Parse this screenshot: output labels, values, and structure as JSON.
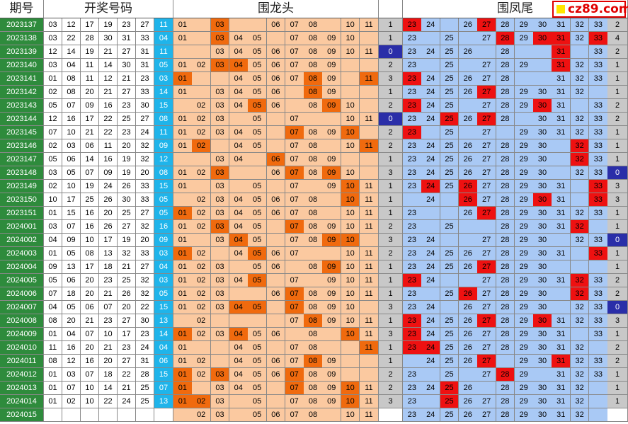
{
  "chart_data": {
    "type": "table",
    "headers": {
      "period": "期号",
      "draw": "开奖号码",
      "dragon_head": "围龙头",
      "phoenix_tail": "围凤尾"
    },
    "rows": [
      {
        "period": "2023137",
        "nums": [
          "03",
          "12",
          "17",
          "19",
          "23",
          "27"
        ],
        "special": "11",
        "head_count": "1",
        "tail_count": "2"
      },
      {
        "period": "2023138",
        "nums": [
          "03",
          "22",
          "28",
          "30",
          "31",
          "33"
        ],
        "special": "04",
        "head_count": "1",
        "tail_count": "4"
      },
      {
        "period": "2023139",
        "nums": [
          "12",
          "14",
          "19",
          "21",
          "27",
          "31"
        ],
        "special": "11",
        "head_count": "0",
        "tail_count": "2"
      },
      {
        "period": "2023140",
        "nums": [
          "03",
          "04",
          "11",
          "14",
          "30",
          "31"
        ],
        "special": "05",
        "head_count": "2",
        "tail_count": "1"
      },
      {
        "period": "2023141",
        "nums": [
          "01",
          "08",
          "11",
          "12",
          "21",
          "23"
        ],
        "special": "03",
        "head_count": "3",
        "tail_count": "1"
      },
      {
        "period": "2023142",
        "nums": [
          "02",
          "08",
          "20",
          "21",
          "27",
          "33"
        ],
        "special": "14",
        "head_count": "1",
        "tail_count": "1"
      },
      {
        "period": "2023143",
        "nums": [
          "05",
          "07",
          "09",
          "16",
          "23",
          "30"
        ],
        "special": "15",
        "head_count": "2",
        "tail_count": "2"
      },
      {
        "period": "2023144",
        "nums": [
          "12",
          "16",
          "17",
          "22",
          "25",
          "27"
        ],
        "special": "08",
        "head_count": "0",
        "tail_count": "2"
      },
      {
        "period": "2023145",
        "nums": [
          "07",
          "10",
          "21",
          "22",
          "23",
          "24"
        ],
        "special": "11",
        "head_count": "2",
        "tail_count": "1"
      },
      {
        "period": "2023146",
        "nums": [
          "02",
          "03",
          "06",
          "11",
          "20",
          "32"
        ],
        "special": "09",
        "head_count": "2",
        "tail_count": "1"
      },
      {
        "period": "2023147",
        "nums": [
          "05",
          "06",
          "14",
          "16",
          "19",
          "32"
        ],
        "special": "12",
        "head_count": "1",
        "tail_count": "1"
      },
      {
        "period": "2023148",
        "nums": [
          "03",
          "05",
          "07",
          "09",
          "19",
          "20"
        ],
        "special": "08",
        "head_count": "3",
        "tail_count": "0"
      },
      {
        "period": "2023149",
        "nums": [
          "02",
          "10",
          "19",
          "24",
          "26",
          "33"
        ],
        "special": "15",
        "head_count": "1",
        "tail_count": "3"
      },
      {
        "period": "2023150",
        "nums": [
          "10",
          "17",
          "25",
          "26",
          "30",
          "33"
        ],
        "special": "05",
        "head_count": "1",
        "tail_count": "3"
      },
      {
        "period": "2023151",
        "nums": [
          "01",
          "15",
          "16",
          "20",
          "25",
          "27"
        ],
        "special": "05",
        "head_count": "1",
        "tail_count": "1"
      },
      {
        "period": "2024001",
        "nums": [
          "03",
          "07",
          "16",
          "26",
          "27",
          "32"
        ],
        "special": "16",
        "head_count": "2",
        "tail_count": "1"
      },
      {
        "period": "2024002",
        "nums": [
          "04",
          "09",
          "10",
          "17",
          "19",
          "20"
        ],
        "special": "09",
        "head_count": "3",
        "tail_count": "0"
      },
      {
        "period": "2024003",
        "nums": [
          "01",
          "05",
          "08",
          "13",
          "32",
          "33"
        ],
        "special": "03",
        "head_count": "2",
        "tail_count": "1"
      },
      {
        "period": "2024004",
        "nums": [
          "09",
          "13",
          "17",
          "18",
          "21",
          "27"
        ],
        "special": "04",
        "head_count": "1",
        "tail_count": "1"
      },
      {
        "period": "2024005",
        "nums": [
          "05",
          "06",
          "20",
          "23",
          "25",
          "32"
        ],
        "special": "03",
        "head_count": "1",
        "tail_count": "2"
      },
      {
        "period": "2024006",
        "nums": [
          "07",
          "18",
          "20",
          "21",
          "26",
          "32"
        ],
        "special": "05",
        "head_count": "1",
        "tail_count": "2"
      },
      {
        "period": "2024007",
        "nums": [
          "04",
          "05",
          "06",
          "07",
          "20",
          "22"
        ],
        "special": "15",
        "head_count": "3",
        "tail_count": "0"
      },
      {
        "period": "2024008",
        "nums": [
          "08",
          "20",
          "21",
          "23",
          "27",
          "30"
        ],
        "special": "13",
        "head_count": "1",
        "tail_count": "3"
      },
      {
        "period": "2024009",
        "nums": [
          "01",
          "04",
          "07",
          "10",
          "17",
          "23"
        ],
        "special": "14",
        "head_count": "3",
        "tail_count": "1"
      },
      {
        "period": "2024010",
        "nums": [
          "11",
          "16",
          "20",
          "21",
          "23",
          "24"
        ],
        "special": "04",
        "head_count": "1",
        "tail_count": "2"
      },
      {
        "period": "2024011",
        "nums": [
          "08",
          "12",
          "16",
          "20",
          "27",
          "31"
        ],
        "special": "06",
        "head_count": "1",
        "tail_count": "2"
      },
      {
        "period": "2024012",
        "nums": [
          "01",
          "03",
          "07",
          "18",
          "22",
          "28"
        ],
        "special": "15",
        "head_count": "2",
        "tail_count": "1"
      },
      {
        "period": "2024013",
        "nums": [
          "01",
          "07",
          "10",
          "14",
          "21",
          "25"
        ],
        "special": "07",
        "head_count": "2",
        "tail_count": "1"
      },
      {
        "period": "2024014",
        "nums": [
          "01",
          "02",
          "10",
          "22",
          "24",
          "25"
        ],
        "special": "13",
        "head_count": "3",
        "tail_count": "1"
      },
      {
        "period": "2024015",
        "nums": [],
        "special": "",
        "head_count": "",
        "tail_count": ""
      }
    ],
    "head_numbers": [
      "01",
      "02",
      "03",
      "04",
      "05",
      "06",
      "07",
      "08",
      "09",
      "10",
      "11"
    ],
    "tail_numbers": [
      "23",
      "24",
      "25",
      "26",
      "27",
      "28",
      "29",
      "30",
      "31",
      "32",
      "33"
    ],
    "head_pred": [
      [
        "01",
        "03",
        "06",
        "07",
        "08",
        "10",
        "11"
      ],
      [
        "01",
        "03",
        "04",
        "05",
        "07",
        "08",
        "09",
        "10"
      ],
      [
        "03",
        "04",
        "05",
        "06",
        "07",
        "08",
        "09",
        "10",
        "11"
      ],
      [
        "01",
        "02",
        "03",
        "04",
        "05",
        "06",
        "07",
        "08",
        "09"
      ],
      [
        "01",
        "04",
        "05",
        "06",
        "07",
        "08",
        "09",
        "11"
      ],
      [
        "01",
        "03",
        "04",
        "05",
        "06",
        "08",
        "09"
      ],
      [
        "02",
        "03",
        "04",
        "05",
        "06",
        "08",
        "09",
        "10"
      ],
      [
        "01",
        "02",
        "03",
        "05",
        "07",
        "10",
        "11"
      ],
      [
        "01",
        "02",
        "03",
        "04",
        "05",
        "07",
        "08",
        "09",
        "10"
      ],
      [
        "01",
        "02",
        "04",
        "05",
        "07",
        "08",
        "10",
        "11"
      ],
      [
        "03",
        "04",
        "06",
        "07",
        "08",
        "09"
      ],
      [
        "01",
        "02",
        "03",
        "06",
        "07",
        "08",
        "09",
        "10"
      ],
      [
        "01",
        "03",
        "05",
        "07",
        "09",
        "10",
        "11"
      ],
      [
        "02",
        "03",
        "04",
        "05",
        "06",
        "07",
        "08",
        "10",
        "11"
      ],
      [
        "01",
        "02",
        "03",
        "04",
        "05",
        "06",
        "07",
        "08",
        "10",
        "11"
      ],
      [
        "01",
        "02",
        "03",
        "04",
        "05",
        "07",
        "08",
        "09",
        "10",
        "11"
      ],
      [
        "01",
        "03",
        "04",
        "05",
        "07",
        "08",
        "09",
        "10"
      ],
      [
        "01",
        "02",
        "04",
        "05",
        "06",
        "07",
        "10",
        "11"
      ],
      [
        "01",
        "02",
        "03",
        "05",
        "06",
        "08",
        "09",
        "10",
        "11"
      ],
      [
        "01",
        "02",
        "03",
        "04",
        "05",
        "07",
        "09",
        "10",
        "11"
      ],
      [
        "01",
        "02",
        "03",
        "06",
        "07",
        "08",
        "09",
        "10",
        "11"
      ],
      [
        "01",
        "02",
        "03",
        "04",
        "05",
        "07",
        "08",
        "09",
        "10"
      ],
      [
        "02",
        "07",
        "08",
        "09",
        "10",
        "11"
      ],
      [
        "01",
        "02",
        "03",
        "04",
        "05",
        "06",
        "08",
        "10",
        "11"
      ],
      [
        "01",
        "04",
        "05",
        "07",
        "08",
        "11"
      ],
      [
        "01",
        "02",
        "04",
        "05",
        "06",
        "07",
        "08",
        "09"
      ],
      [
        "01",
        "02",
        "03",
        "04",
        "05",
        "06",
        "07",
        "08",
        "09"
      ],
      [
        "01",
        "03",
        "04",
        "05",
        "07",
        "08",
        "09",
        "10",
        "11"
      ],
      [
        "01",
        "02",
        "03",
        "05",
        "07",
        "08",
        "09",
        "10",
        "11"
      ],
      [
        "02",
        "03",
        "05",
        "06",
        "07",
        "08",
        "10",
        "11"
      ]
    ],
    "tail_pred": [
      [
        "23",
        "24",
        "26",
        "27",
        "28",
        "29",
        "30",
        "31",
        "32",
        "33"
      ],
      [
        "23",
        "25",
        "27",
        "28",
        "29",
        "30",
        "31",
        "32",
        "33"
      ],
      [
        "23",
        "24",
        "25",
        "26",
        "28",
        "31",
        "33"
      ],
      [
        "23",
        "25",
        "27",
        "28",
        "29",
        "31",
        "32",
        "33"
      ],
      [
        "23",
        "24",
        "25",
        "26",
        "27",
        "28",
        "31",
        "32",
        "33"
      ],
      [
        "23",
        "24",
        "25",
        "26",
        "27",
        "28",
        "29",
        "30",
        "31",
        "32"
      ],
      [
        "23",
        "24",
        "25",
        "27",
        "28",
        "29",
        "30",
        "31",
        "33"
      ],
      [
        "23",
        "24",
        "25",
        "26",
        "27",
        "28",
        "30",
        "31",
        "32",
        "33"
      ],
      [
        "23",
        "25",
        "27",
        "29",
        "30",
        "31",
        "32",
        "33"
      ],
      [
        "23",
        "24",
        "25",
        "26",
        "27",
        "28",
        "29",
        "30",
        "32",
        "33"
      ],
      [
        "23",
        "24",
        "25",
        "26",
        "27",
        "28",
        "29",
        "30",
        "32",
        "33"
      ],
      [
        "23",
        "24",
        "25",
        "26",
        "27",
        "28",
        "29",
        "30",
        "32",
        "33"
      ],
      [
        "23",
        "24",
        "25",
        "26",
        "27",
        "28",
        "29",
        "30",
        "31",
        "33"
      ],
      [
        "24",
        "26",
        "27",
        "28",
        "29",
        "30",
        "31",
        "33"
      ],
      [
        "23",
        "26",
        "27",
        "28",
        "29",
        "30",
        "31",
        "32",
        "33"
      ],
      [
        "23",
        "25",
        "28",
        "29",
        "30",
        "31",
        "32"
      ],
      [
        "23",
        "24",
        "27",
        "28",
        "29",
        "30",
        "32",
        "33"
      ],
      [
        "23",
        "24",
        "25",
        "26",
        "27",
        "28",
        "29",
        "30",
        "31",
        "33"
      ],
      [
        "23",
        "24",
        "25",
        "26",
        "27",
        "28",
        "29",
        "30"
      ],
      [
        "23",
        "24",
        "27",
        "28",
        "29",
        "30",
        "31",
        "32",
        "33"
      ],
      [
        "23",
        "25",
        "26",
        "27",
        "28",
        "29",
        "30",
        "32",
        "33"
      ],
      [
        "23",
        "24",
        "26",
        "27",
        "28",
        "29",
        "30",
        "32",
        "33"
      ],
      [
        "23",
        "24",
        "25",
        "26",
        "27",
        "28",
        "29",
        "30",
        "31",
        "32",
        "33"
      ],
      [
        "23",
        "24",
        "25",
        "26",
        "27",
        "28",
        "29",
        "30",
        "31",
        "33"
      ],
      [
        "23",
        "24",
        "25",
        "26",
        "27",
        "28",
        "29",
        "30",
        "31",
        "32"
      ],
      [
        "24",
        "25",
        "26",
        "27",
        "29",
        "30",
        "31",
        "32",
        "33"
      ],
      [
        "23",
        "25",
        "27",
        "28",
        "29",
        "31",
        "32",
        "33"
      ],
      [
        "23",
        "24",
        "25",
        "26",
        "28",
        "29",
        "30",
        "31",
        "32"
      ],
      [
        "23",
        "25",
        "26",
        "27",
        "28",
        "29",
        "30",
        "31",
        "32"
      ],
      [
        "23",
        "24",
        "25",
        "26",
        "27",
        "28",
        "29",
        "30",
        "31",
        "32"
      ]
    ]
  },
  "colors": {
    "period_bg": "#2e8b3c",
    "period_text": "#ffffff",
    "special_bg": "#1fb4ea",
    "head_bg": "#fbc9a0",
    "head_hit": "#f06a0e",
    "tail_bg": "#a9c9f5",
    "tail_hit": "#ee1111",
    "count_bg": "#c8c8c8",
    "count_zero": "#2a2ea8",
    "gap_bg": "#ffffff",
    "brand": "#e00000"
  },
  "brand": {
    "text": "cz89.com",
    "icon": "yellow-square-icon"
  }
}
